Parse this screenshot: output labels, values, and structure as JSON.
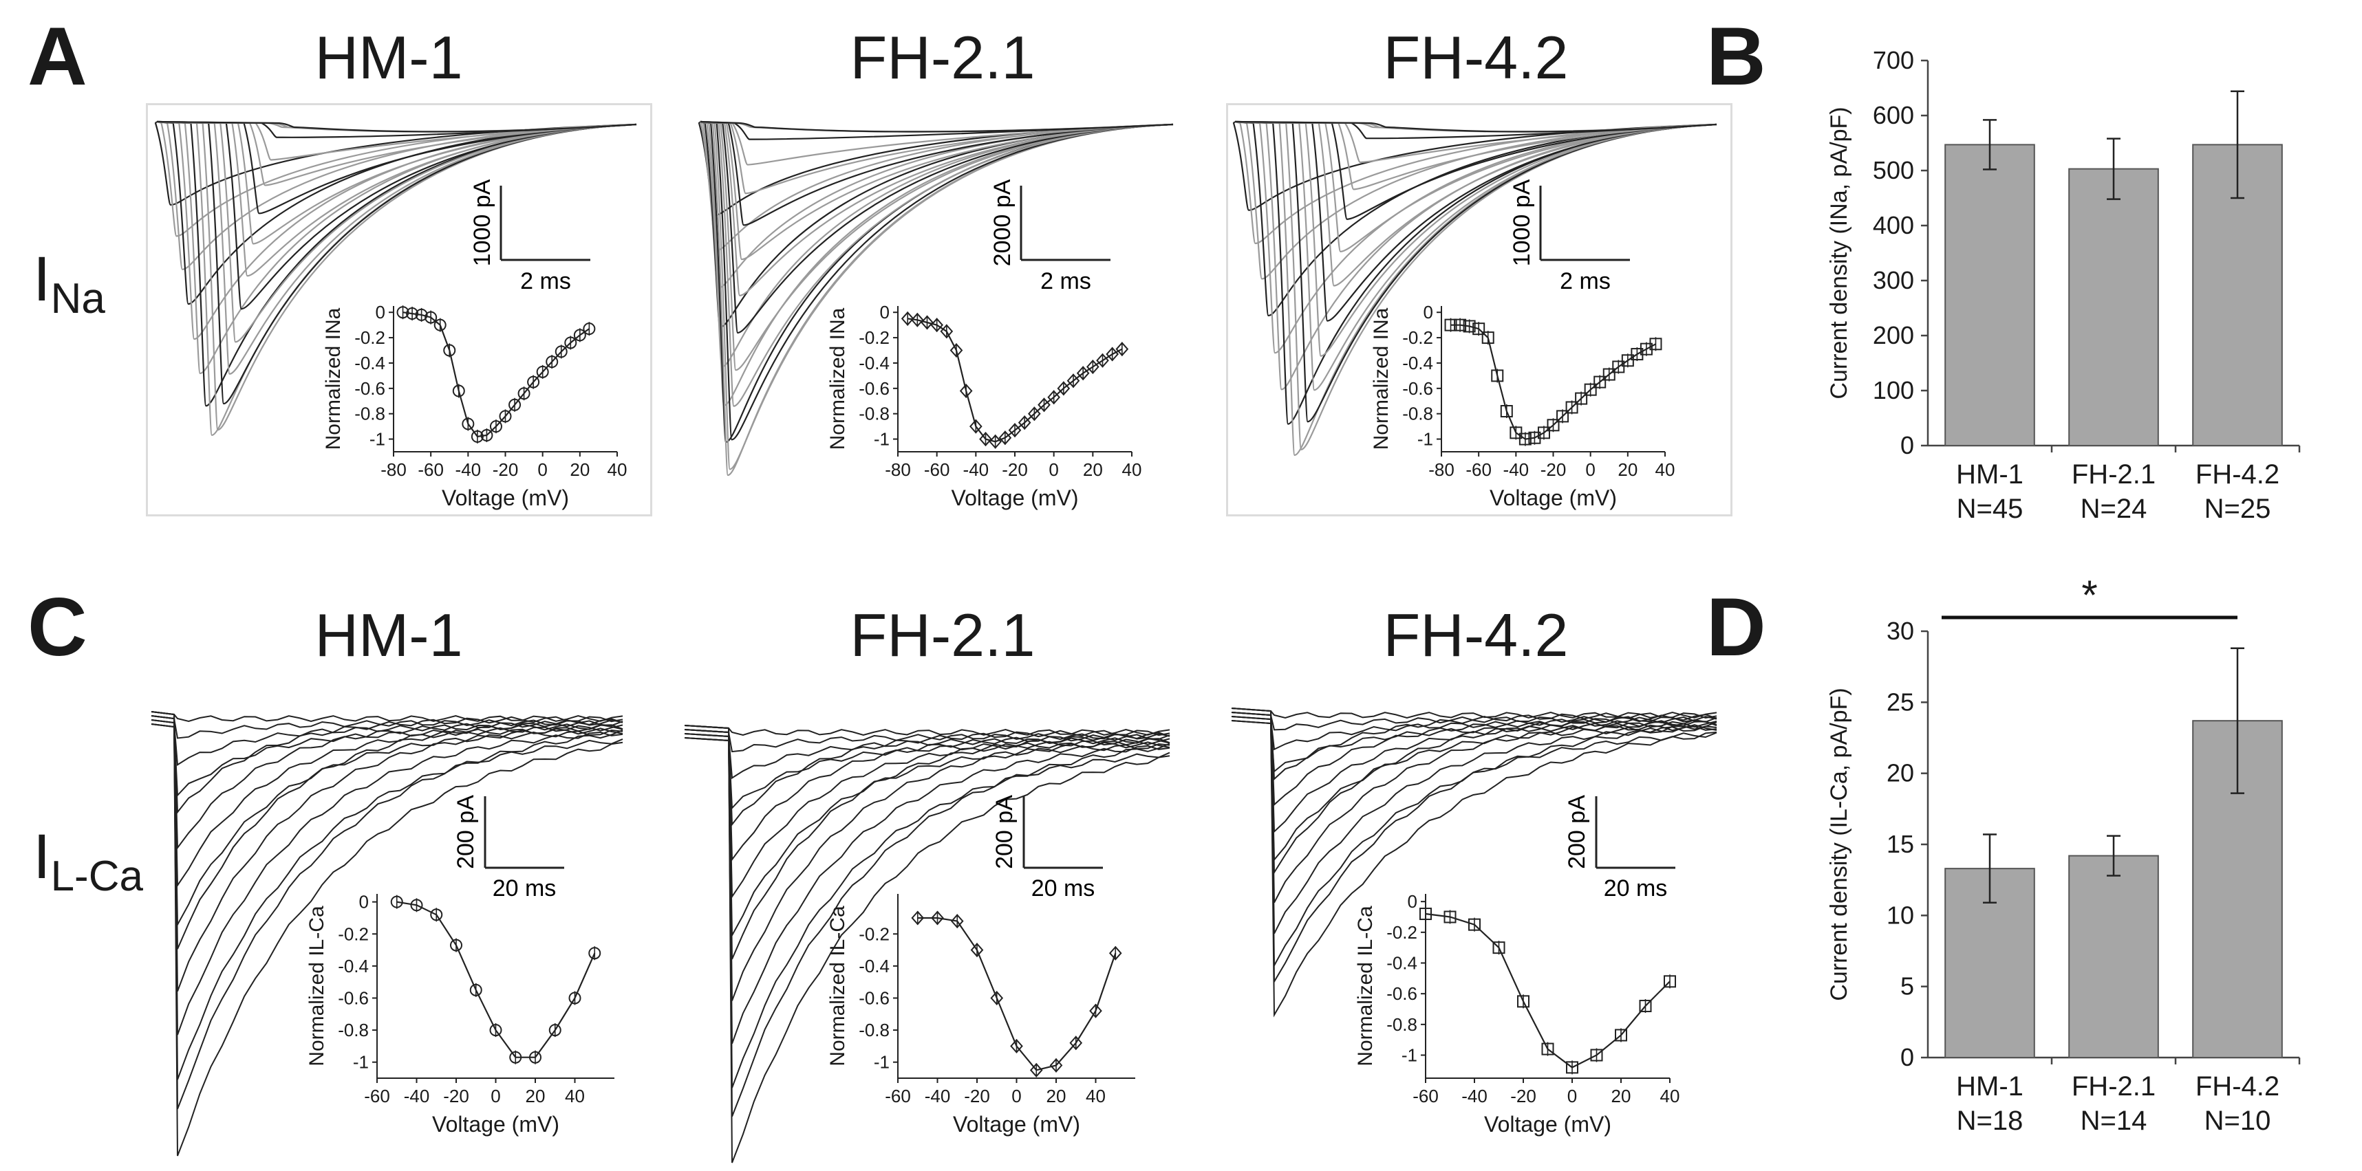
{
  "panels": {
    "A": "A",
    "B": "B",
    "C": "C",
    "D": "D"
  },
  "row_labels": {
    "na": {
      "main": "I",
      "sub": "Na"
    },
    "ca": {
      "main": "I",
      "sub": "L-Ca"
    }
  },
  "cell_titles": {
    "na": [
      "HM-1",
      "FH-2.1",
      "FH-4.2"
    ],
    "ca": [
      "HM-1",
      "FH-2.1",
      "FH-4.2"
    ]
  },
  "scale_bars": {
    "na": [
      {
        "y": "1000 pA",
        "x": "2 ms"
      },
      {
        "y": "2000 pA",
        "x": "2 ms"
      },
      {
        "y": "1000 pA",
        "x": "2 ms"
      }
    ],
    "ca": [
      {
        "y": "200 pA",
        "x": "20 ms"
      },
      {
        "y": "200 pA",
        "x": "20 ms"
      },
      {
        "y": "200 pA",
        "x": "20 ms"
      }
    ]
  },
  "colors": {
    "bar_fill": "#a6a6a6",
    "trace": "#222222",
    "trace_light": "#9a9a9a"
  },
  "chart_data": [
    {
      "type": "line",
      "panel": "A",
      "cell": "HM-1",
      "xlabel": "Voltage (mV)",
      "ylabel": "Normalized INa",
      "xlim": [
        -80,
        40
      ],
      "ylim": [
        -1.1,
        0.05
      ],
      "xticks": [
        -80,
        -60,
        -40,
        -20,
        0,
        20,
        40
      ],
      "yticks": [
        0,
        -0.2,
        -0.4,
        -0.6,
        -0.8,
        -1.0
      ],
      "marker": "circle",
      "x": [
        -75,
        -70,
        -65,
        -60,
        -55,
        -50,
        -45,
        -40,
        -35,
        -30,
        -25,
        -20,
        -15,
        -10,
        -5,
        0,
        5,
        10,
        15,
        20,
        25
      ],
      "y": [
        0,
        -0.01,
        -0.02,
        -0.04,
        -0.1,
        -0.3,
        -0.62,
        -0.88,
        -0.98,
        -0.97,
        -0.9,
        -0.82,
        -0.73,
        -0.64,
        -0.55,
        -0.47,
        -0.39,
        -0.31,
        -0.24,
        -0.18,
        -0.13
      ]
    },
    {
      "type": "line",
      "panel": "A",
      "cell": "FH-2.1",
      "xlabel": "Voltage (mV)",
      "ylabel": "Normalized INa",
      "xlim": [
        -80,
        40
      ],
      "ylim": [
        -1.1,
        0.05
      ],
      "xticks": [
        -80,
        -60,
        -40,
        -20,
        0,
        20,
        40
      ],
      "yticks": [
        0,
        -0.2,
        -0.4,
        -0.6,
        -0.8,
        -1.0
      ],
      "marker": "diamond",
      "x": [
        -75,
        -70,
        -65,
        -60,
        -55,
        -50,
        -45,
        -40,
        -35,
        -30,
        -25,
        -20,
        -15,
        -10,
        -5,
        0,
        5,
        10,
        15,
        20,
        25,
        30,
        35
      ],
      "y": [
        -0.05,
        -0.06,
        -0.08,
        -0.1,
        -0.15,
        -0.3,
        -0.62,
        -0.9,
        -1.0,
        -1.02,
        -0.99,
        -0.93,
        -0.87,
        -0.8,
        -0.73,
        -0.67,
        -0.6,
        -0.54,
        -0.48,
        -0.43,
        -0.38,
        -0.33,
        -0.29
      ]
    },
    {
      "type": "line",
      "panel": "A",
      "cell": "FH-4.2",
      "xlabel": "Voltage (mV)",
      "ylabel": "Normalized INa",
      "xlim": [
        -80,
        40
      ],
      "ylim": [
        -1.1,
        0.05
      ],
      "xticks": [
        -80,
        -60,
        -40,
        -20,
        0,
        20,
        40
      ],
      "yticks": [
        0,
        -0.2,
        -0.4,
        -0.6,
        -0.8,
        -1.0
      ],
      "marker": "square",
      "x": [
        -75,
        -70,
        -65,
        -60,
        -55,
        -50,
        -45,
        -40,
        -35,
        -30,
        -25,
        -20,
        -15,
        -10,
        -5,
        0,
        5,
        10,
        15,
        20,
        25,
        30,
        35
      ],
      "y": [
        -0.1,
        -0.1,
        -0.11,
        -0.13,
        -0.2,
        -0.5,
        -0.78,
        -0.95,
        -1.0,
        -0.99,
        -0.95,
        -0.89,
        -0.82,
        -0.75,
        -0.68,
        -0.61,
        -0.55,
        -0.49,
        -0.43,
        -0.38,
        -0.33,
        -0.29,
        -0.25
      ]
    },
    {
      "type": "bar",
      "panel": "B",
      "categories": [
        "HM-1\nN=45",
        "FH-2.1\nN=24",
        "FH-4.2\nN=25"
      ],
      "category_lines": [
        [
          "HM-1",
          "N=45"
        ],
        [
          "FH-2.1",
          "N=24"
        ],
        [
          "FH-4.2",
          "N=25"
        ]
      ],
      "values": [
        547,
        503,
        547
      ],
      "errors": [
        45,
        55,
        97
      ],
      "ylabel": "Current density (INa, pA/pF)",
      "ylim": [
        0,
        700
      ],
      "yticks": [
        0,
        100,
        200,
        300,
        400,
        500,
        600,
        700
      ]
    },
    {
      "type": "line",
      "panel": "C",
      "cell": "HM-1",
      "xlabel": "Voltage (mV)",
      "ylabel": "Normalized IL-Ca",
      "xlim": [
        -60,
        60
      ],
      "ylim": [
        -1.1,
        0.05
      ],
      "xticks": [
        -60,
        -40,
        -20,
        0,
        20,
        40
      ],
      "yticks": [
        0,
        -0.2,
        -0.4,
        -0.6,
        -0.8,
        -1.0
      ],
      "marker": "circle",
      "x": [
        -50,
        -40,
        -30,
        -20,
        -10,
        0,
        10,
        20,
        30,
        40,
        50
      ],
      "y": [
        0,
        -0.02,
        -0.08,
        -0.27,
        -0.55,
        -0.8,
        -0.97,
        -0.97,
        -0.8,
        -0.6,
        -0.32
      ]
    },
    {
      "type": "line",
      "panel": "C",
      "cell": "FH-2.1",
      "xlabel": "Voltage (mV)",
      "ylabel": "Normalized IL-Ca",
      "xlim": [
        -60,
        60
      ],
      "ylim": [
        -1.1,
        0.05
      ],
      "xticks": [
        -60,
        -40,
        -20,
        0,
        20,
        40
      ],
      "yticks": [
        -0.2,
        -0.4,
        -0.6,
        -0.8,
        -1.0
      ],
      "marker": "diamond",
      "x": [
        -50,
        -40,
        -30,
        -20,
        -10,
        0,
        10,
        20,
        30,
        40,
        50
      ],
      "y": [
        -0.1,
        -0.1,
        -0.12,
        -0.3,
        -0.6,
        -0.9,
        -1.05,
        -1.02,
        -0.88,
        -0.68,
        -0.32
      ]
    },
    {
      "type": "line",
      "panel": "C",
      "cell": "FH-4.2",
      "xlabel": "Voltage (mV)",
      "ylabel": "Normalized IL-Ca",
      "xlim": [
        -60,
        40
      ],
      "ylim": [
        -1.15,
        0.05
      ],
      "xticks": [
        -60,
        -40,
        -20,
        0,
        20,
        40
      ],
      "yticks": [
        0,
        -0.2,
        -0.4,
        -0.6,
        -0.8,
        -1.0
      ],
      "marker": "square",
      "x": [
        -60,
        -50,
        -40,
        -30,
        -20,
        -10,
        0,
        10,
        20,
        30,
        40
      ],
      "y": [
        -0.08,
        -0.1,
        -0.15,
        -0.3,
        -0.65,
        -0.96,
        -1.08,
        -1.0,
        -0.87,
        -0.68,
        -0.52
      ]
    },
    {
      "type": "bar",
      "panel": "D",
      "categories": [
        "HM-1\nN=18",
        "FH-2.1\nN=14",
        "FH-4.2\nN=10"
      ],
      "category_lines": [
        [
          "HM-1",
          "N=18"
        ],
        [
          "FH-2.1",
          "N=14"
        ],
        [
          "FH-4.2",
          "N=10"
        ]
      ],
      "values": [
        13.3,
        14.2,
        23.7
      ],
      "errors": [
        2.4,
        1.4,
        5.1
      ],
      "ylabel": "Current density (IL-Ca, pA/pF)",
      "ylim": [
        0,
        30
      ],
      "yticks": [
        0,
        5,
        10,
        15,
        20,
        25,
        30
      ],
      "significance": {
        "from": 0,
        "to": 2,
        "label": "*"
      }
    }
  ]
}
